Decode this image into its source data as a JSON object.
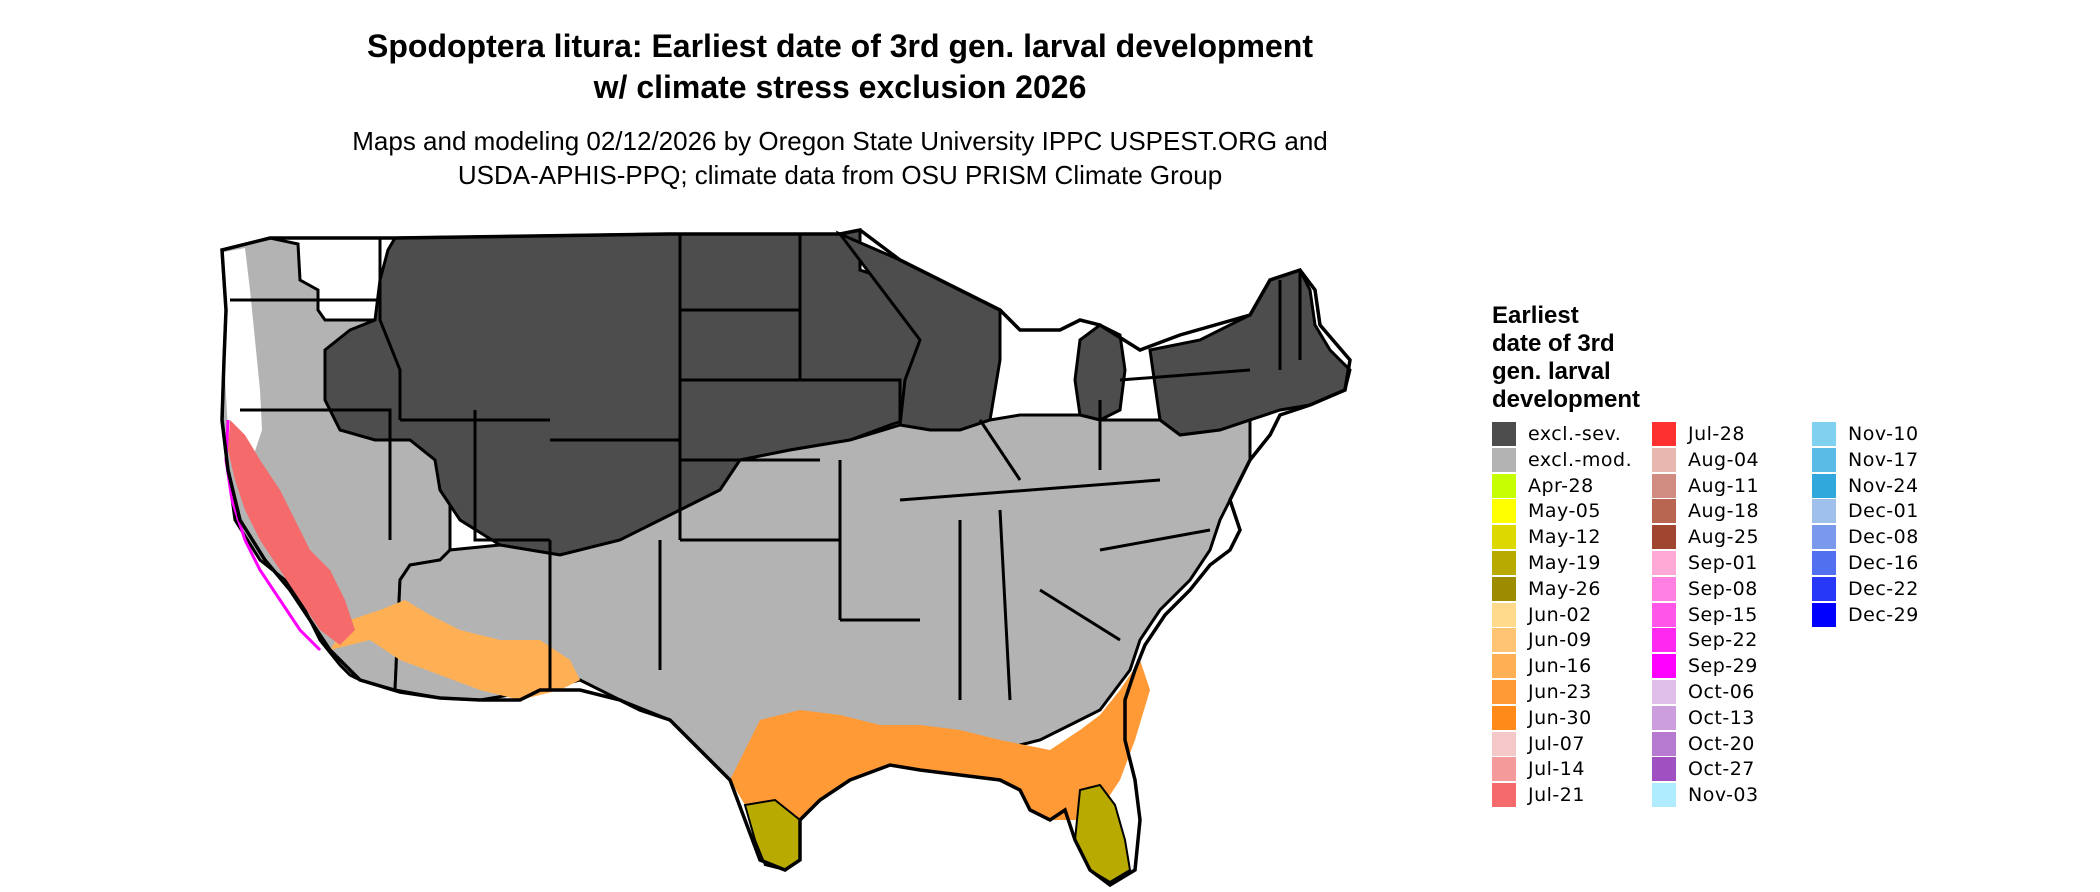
{
  "title": {
    "line1": "Spodoptera litura: Earliest date of 3rd gen. larval development",
    "line2": "w/ climate stress exclusion 2026"
  },
  "subtitle": {
    "line1": "Maps and modeling 02/12/2026 by Oregon State University IPPC USPEST.ORG and",
    "line2": "USDA-APHIS-PPQ; climate data from OSU PRISM Climate Group"
  },
  "legend": {
    "title_lines": [
      "Earliest",
      "date of 3rd",
      "gen. larval",
      "development"
    ],
    "items": [
      {
        "label": "excl.-sev.",
        "color": "#4d4d4d"
      },
      {
        "label": "excl.-mod.",
        "color": "#b3b3b3"
      },
      {
        "label": "Apr-28",
        "color": "#c6ff00"
      },
      {
        "label": "May-05",
        "color": "#ffff00"
      },
      {
        "label": "May-12",
        "color": "#dcd800"
      },
      {
        "label": "May-19",
        "color": "#b8aa00"
      },
      {
        "label": "May-26",
        "color": "#9e8c00"
      },
      {
        "label": "Jun-02",
        "color": "#ffd98c"
      },
      {
        "label": "Jun-09",
        "color": "#ffc473"
      },
      {
        "label": "Jun-16",
        "color": "#ffb055"
      },
      {
        "label": "Jun-23",
        "color": "#ff9a36"
      },
      {
        "label": "Jun-30",
        "color": "#ff8a1a"
      },
      {
        "label": "Jul-07",
        "color": "#f5c8c8"
      },
      {
        "label": "Jul-14",
        "color": "#f59a9a"
      },
      {
        "label": "Jul-21",
        "color": "#f56a6a"
      },
      {
        "label": "Jul-28",
        "color": "#ff3030"
      },
      {
        "label": "Aug-04",
        "color": "#e8b8b0"
      },
      {
        "label": "Aug-11",
        "color": "#d08c80"
      },
      {
        "label": "Aug-18",
        "color": "#b86652"
      },
      {
        "label": "Aug-25",
        "color": "#a04630"
      },
      {
        "label": "Sep-01",
        "color": "#ffaad6"
      },
      {
        "label": "Sep-08",
        "color": "#ff80e0"
      },
      {
        "label": "Sep-15",
        "color": "#ff55e8"
      },
      {
        "label": "Sep-22",
        "color": "#ff28f0"
      },
      {
        "label": "Sep-29",
        "color": "#ff00ff"
      },
      {
        "label": "Oct-06",
        "color": "#e0c0ea"
      },
      {
        "label": "Oct-13",
        "color": "#cc9ede"
      },
      {
        "label": "Oct-20",
        "color": "#b67ad0"
      },
      {
        "label": "Oct-27",
        "color": "#a050c0"
      },
      {
        "label": "Nov-03",
        "color": "#b0ecff"
      },
      {
        "label": "Nov-10",
        "color": "#80d0f0"
      },
      {
        "label": "Nov-17",
        "color": "#5abce6"
      },
      {
        "label": "Nov-24",
        "color": "#30a8dc"
      },
      {
        "label": "Dec-01",
        "color": "#a0c0ec"
      },
      {
        "label": "Dec-08",
        "color": "#7a98ec"
      },
      {
        "label": "Dec-16",
        "color": "#5070f0"
      },
      {
        "label": "Dec-22",
        "color": "#2838f8"
      },
      {
        "label": "Dec-29",
        "color": "#0000ff"
      }
    ]
  },
  "map_colors": {
    "severe": "#4d4d4d",
    "moderate": "#b3b3b3",
    "outline": "#000000"
  }
}
